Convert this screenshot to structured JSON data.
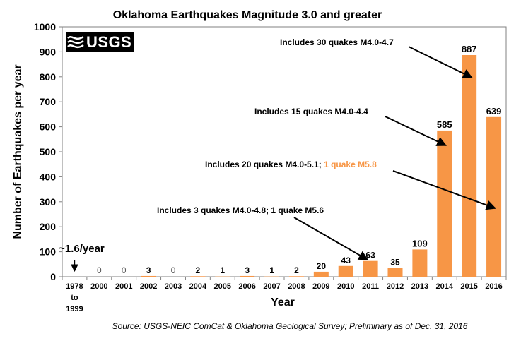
{
  "chart_data": {
    "type": "bar",
    "title": "Oklahoma Earthquakes Magnitude 3.0 and greater",
    "ylabel": "Number of Earthquakes per year",
    "xlabel": "Year",
    "ylim": [
      0,
      1000
    ],
    "yticks": [
      "0",
      "100",
      "200",
      "300",
      "400",
      "500",
      "600",
      "700",
      "800",
      "900",
      "1000"
    ],
    "categories": [
      "1978\nto\n1999",
      "2000",
      "2001",
      "2002",
      "2003",
      "2004",
      "2005",
      "2006",
      "2007",
      "2008",
      "2009",
      "2010",
      "2011",
      "2012",
      "2013",
      "2014",
      "2015",
      "2016"
    ],
    "values": [
      1.6,
      0,
      0,
      3,
      0,
      2,
      1,
      3,
      1,
      2,
      20,
      43,
      63,
      35,
      109,
      585,
      887,
      639
    ],
    "value_labels": [
      "~1.6/year",
      "0",
      "0",
      "3",
      "0",
      "2",
      "1",
      "3",
      "1",
      "2",
      "20",
      "43",
      "63",
      "35",
      "109",
      "585",
      "887",
      "639"
    ],
    "bar_color": "#f79646",
    "grid": false,
    "annotations": [
      {
        "text": "Includes 30 quakes M4.0-4.7",
        "target": "2015"
      },
      {
        "text": "Includes 15 quakes M4.0-4.4",
        "target": "2014"
      },
      {
        "text": "Includes 20 quakes M4.0-5.1; ",
        "highlight": "1 quake M5.8",
        "highlight_color": "#f79646",
        "target": "2016"
      },
      {
        "text": "Includes 3 quakes M4.0-4.8; 1 quake M5.6",
        "target": "2011"
      }
    ]
  },
  "logo": {
    "text": "USGS"
  },
  "source": "Source: USGS-NEIC ComCat & Oklahoma Geological Survey; Preliminary as of Dec. 31, 2016"
}
